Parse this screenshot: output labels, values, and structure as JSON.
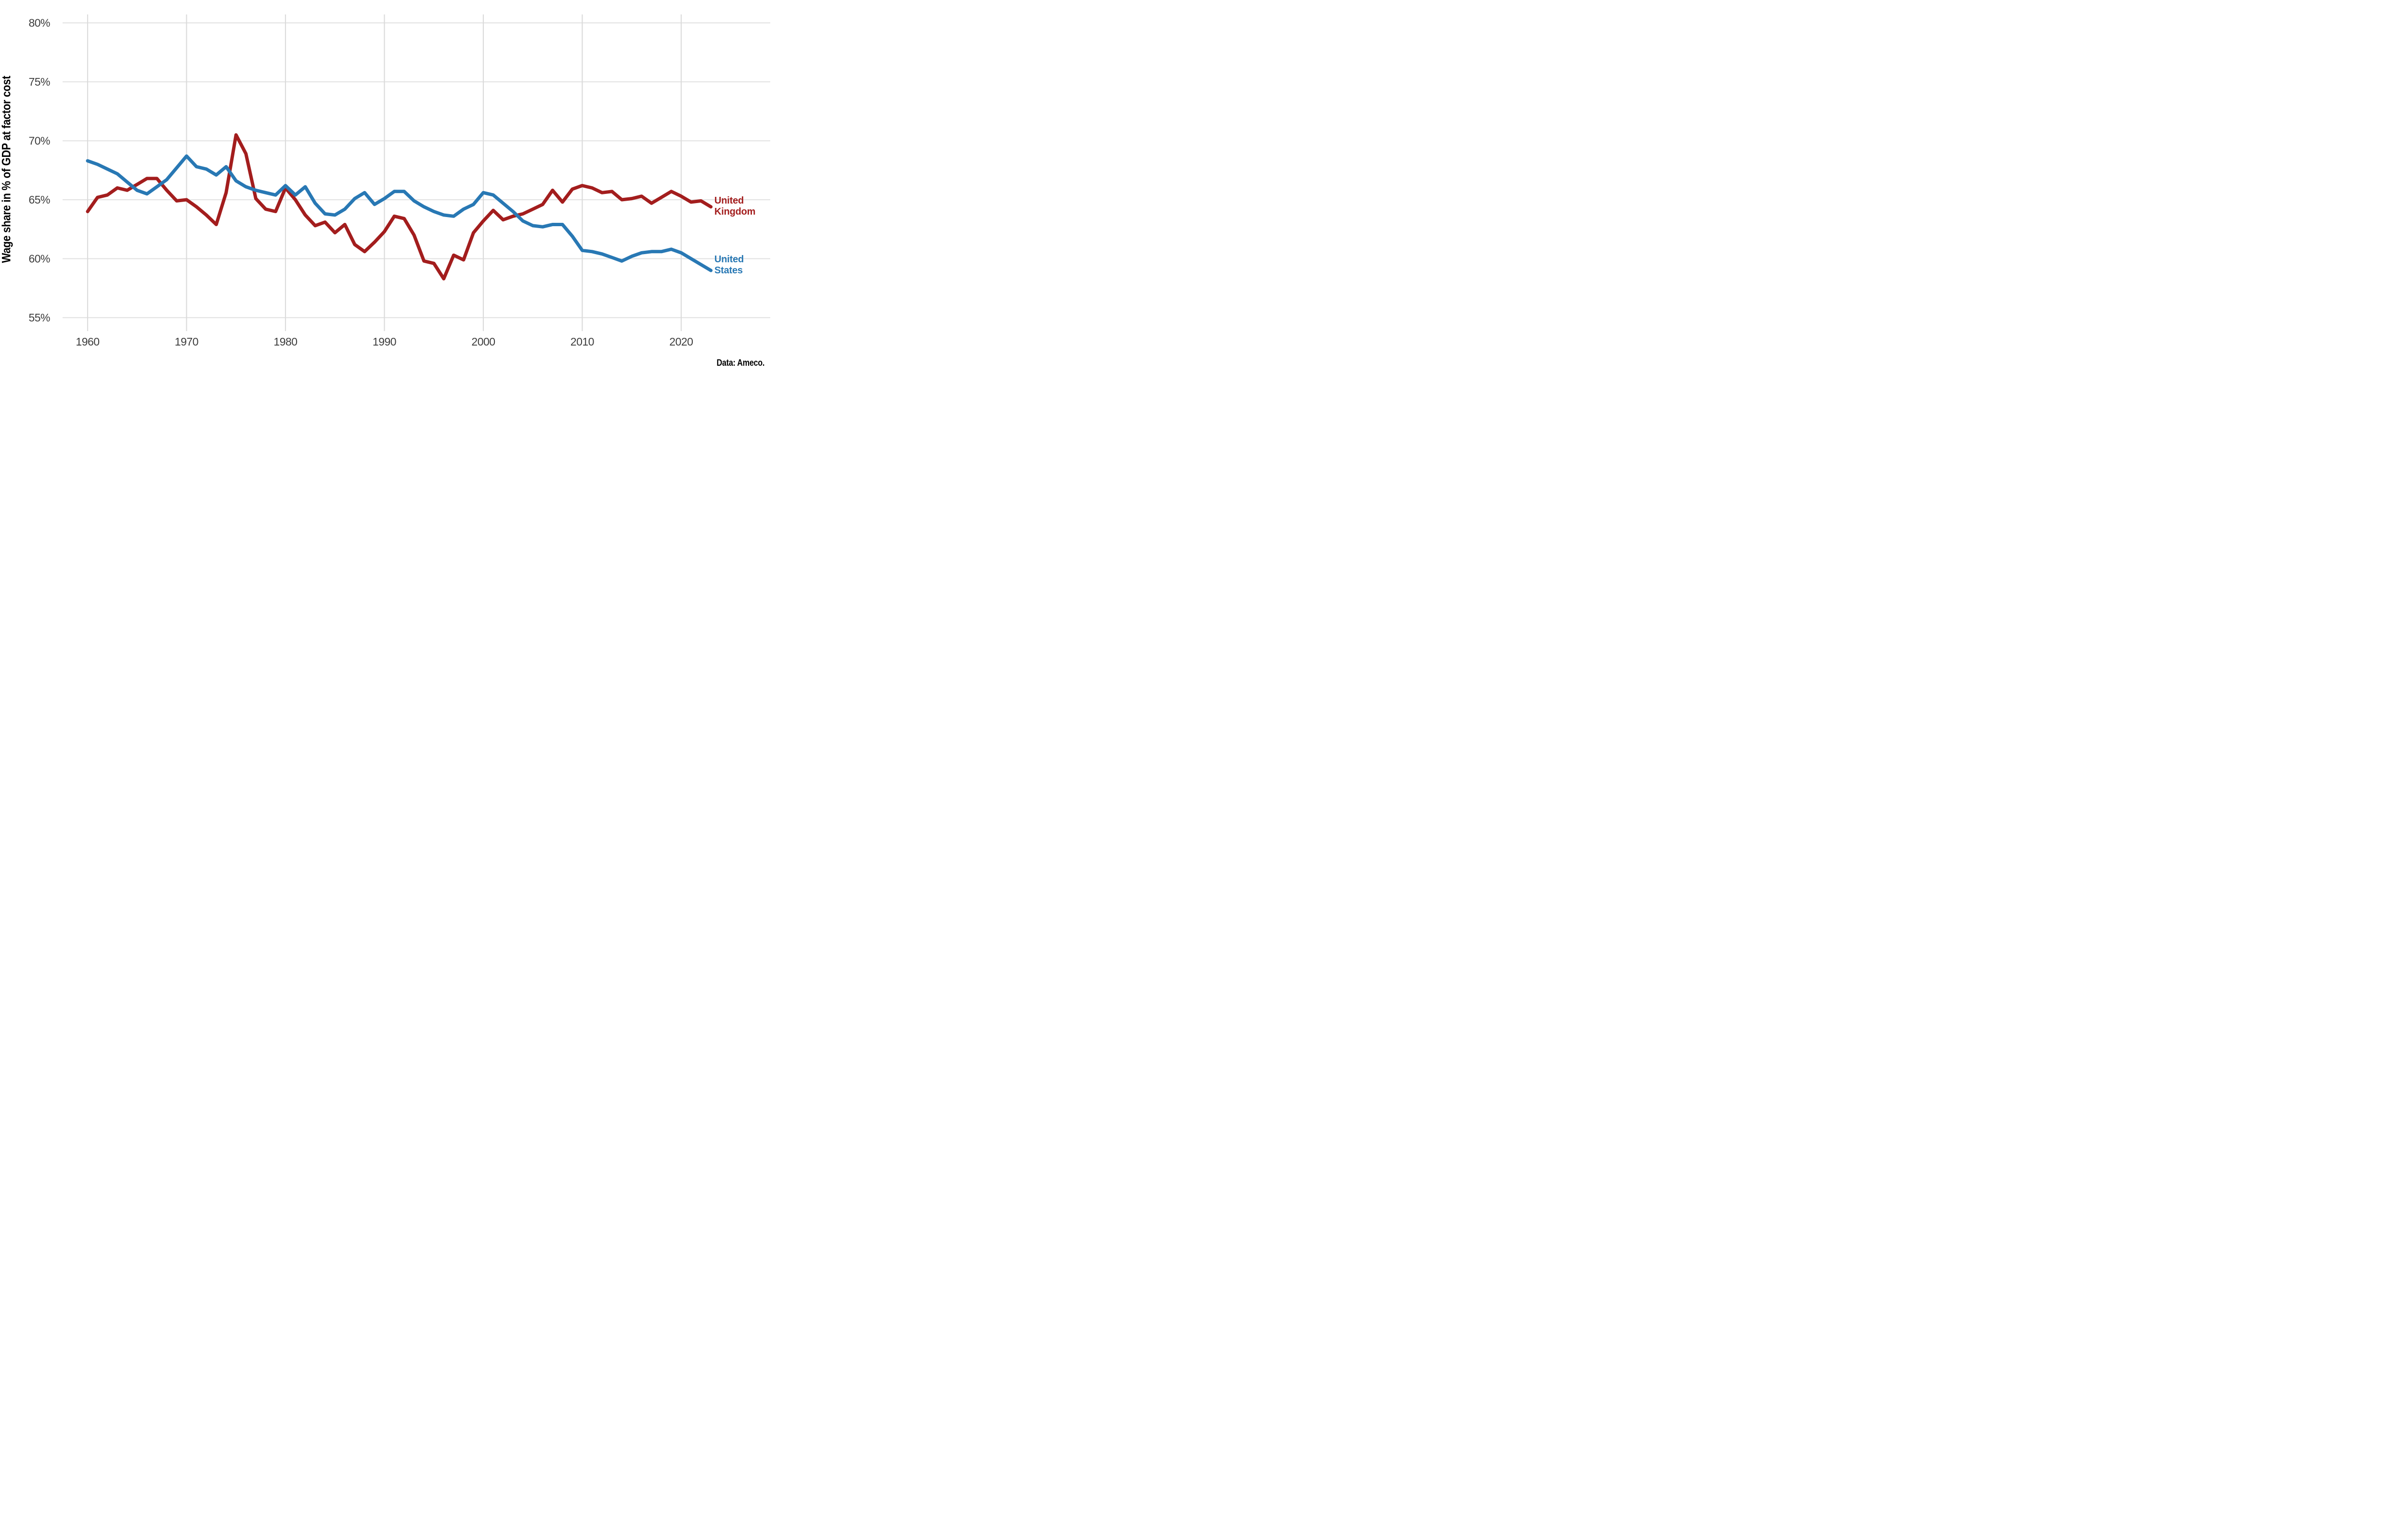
{
  "chart_data": {
    "type": "line",
    "y_axis_title": "Wage share in % of GDP at factor cost",
    "source_note": "Data: Ameco.",
    "x_domain": [
      1960,
      2023
    ],
    "y_domain": [
      54,
      81.5
    ],
    "grid": true,
    "legend_position": "right of line ends",
    "x_ticks": [
      1960,
      1970,
      1980,
      1990,
      2000,
      2010,
      2020
    ],
    "y_ticks": [
      80,
      75,
      70,
      65,
      60,
      55
    ],
    "y_tick_labels": [
      "80%",
      "75%",
      "70%",
      "65%",
      "60%",
      "55%"
    ],
    "x_tick_labels": [
      "1960",
      "1970",
      "1980",
      "1990",
      "2000",
      "2010",
      "2020"
    ],
    "years": [
      1960,
      1961,
      1962,
      1963,
      1964,
      1965,
      1966,
      1967,
      1968,
      1969,
      1970,
      1971,
      1972,
      1973,
      1974,
      1975,
      1976,
      1977,
      1978,
      1979,
      1980,
      1981,
      1982,
      1983,
      1984,
      1985,
      1986,
      1987,
      1988,
      1989,
      1990,
      1991,
      1992,
      1993,
      1994,
      1995,
      1996,
      1997,
      1998,
      1999,
      2000,
      2001,
      2002,
      2003,
      2004,
      2005,
      2006,
      2007,
      2008,
      2009,
      2010,
      2011,
      2012,
      2013,
      2014,
      2015,
      2016,
      2017,
      2018,
      2019,
      2020,
      2021,
      2022,
      2023
    ],
    "series": [
      {
        "name": "United Kingdom",
        "label_line1": "United",
        "label_line2": "Kingdom",
        "color": "#A31D1D",
        "values": [
          64.0,
          65.2,
          65.4,
          66.0,
          65.8,
          66.3,
          66.8,
          66.8,
          65.8,
          64.9,
          65.0,
          64.4,
          63.7,
          62.9,
          65.6,
          70.5,
          68.9,
          65.1,
          64.2,
          64.0,
          66.0,
          65.0,
          63.7,
          62.8,
          63.1,
          62.2,
          62.9,
          61.2,
          60.6,
          61.4,
          62.3,
          63.6,
          63.4,
          62.0,
          59.8,
          59.6,
          58.3,
          60.3,
          59.9,
          62.2,
          63.2,
          64.1,
          63.3,
          63.6,
          63.8,
          64.2,
          64.6,
          65.8,
          64.8,
          65.9,
          66.2,
          66.0,
          65.6,
          65.7,
          65.0,
          65.1,
          65.3,
          64.7,
          65.2,
          65.7,
          65.3,
          64.8,
          64.9,
          64.4
        ]
      },
      {
        "name": "United States",
        "label_line1": "United",
        "label_line2": "States",
        "color": "#2878B4",
        "values": [
          68.3,
          68.0,
          67.6,
          67.2,
          66.5,
          65.8,
          65.5,
          66.1,
          66.7,
          67.7,
          68.7,
          67.8,
          67.6,
          67.1,
          67.8,
          66.6,
          66.1,
          65.8,
          65.6,
          65.4,
          66.2,
          65.4,
          66.1,
          64.7,
          63.8,
          63.7,
          64.2,
          65.1,
          65.6,
          64.6,
          65.1,
          65.7,
          65.7,
          64.9,
          64.4,
          64.0,
          63.7,
          63.6,
          64.2,
          64.6,
          65.6,
          65.4,
          64.7,
          64.0,
          63.2,
          62.8,
          62.7,
          62.9,
          62.9,
          61.9,
          60.7,
          60.6,
          60.4,
          60.1,
          59.8,
          60.2,
          60.5,
          60.6,
          60.6,
          60.8,
          60.5,
          60.0,
          59.5,
          59.0
        ]
      }
    ]
  },
  "colors": {
    "background": "#FFFFFF",
    "gridline": "#E4E4E4",
    "tick": "#DBDBDB",
    "axis_text": "#3C3C3C",
    "uk_line": "#A31D1D",
    "us_line": "#2878B4"
  }
}
